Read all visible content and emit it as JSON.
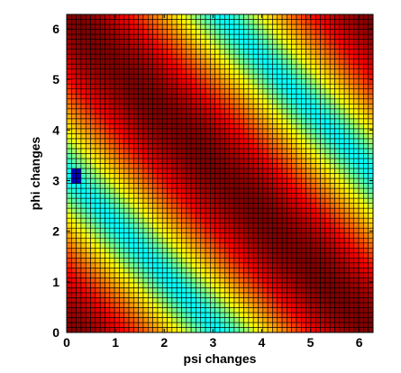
{
  "chart_data": {
    "type": "heatmap",
    "title": "",
    "xlabel": "psi changes",
    "ylabel": "phi changes",
    "xlim": [
      0,
      6.2832
    ],
    "ylim": [
      0,
      6.2832
    ],
    "x_ticks": [
      0,
      1,
      2,
      3,
      4,
      5,
      6
    ],
    "y_ticks": [
      0,
      1,
      2,
      3,
      4,
      5,
      6
    ],
    "grid_cells": 64,
    "cell_edge_color": "#000000",
    "colormap": [
      "#00ffff",
      "#ffff00",
      "#ff8000",
      "#ff0000",
      "#800000"
    ],
    "pattern": "diagonal bands along psi + phi = constant",
    "min_band": [
      {
        "psi": 3.1,
        "phi": 0
      },
      {
        "psi": 0,
        "phi": 3.1
      },
      {
        "psi": 6.28,
        "phi": 3.2
      },
      {
        "psi": 3.2,
        "phi": 6.28
      }
    ],
    "max_band": [
      {
        "psi": 0,
        "phi": 6.28
      },
      {
        "psi": 6.28,
        "phi": 0
      }
    ],
    "dark_spot": {
      "psi": 0.15,
      "phi": 3.1
    }
  }
}
